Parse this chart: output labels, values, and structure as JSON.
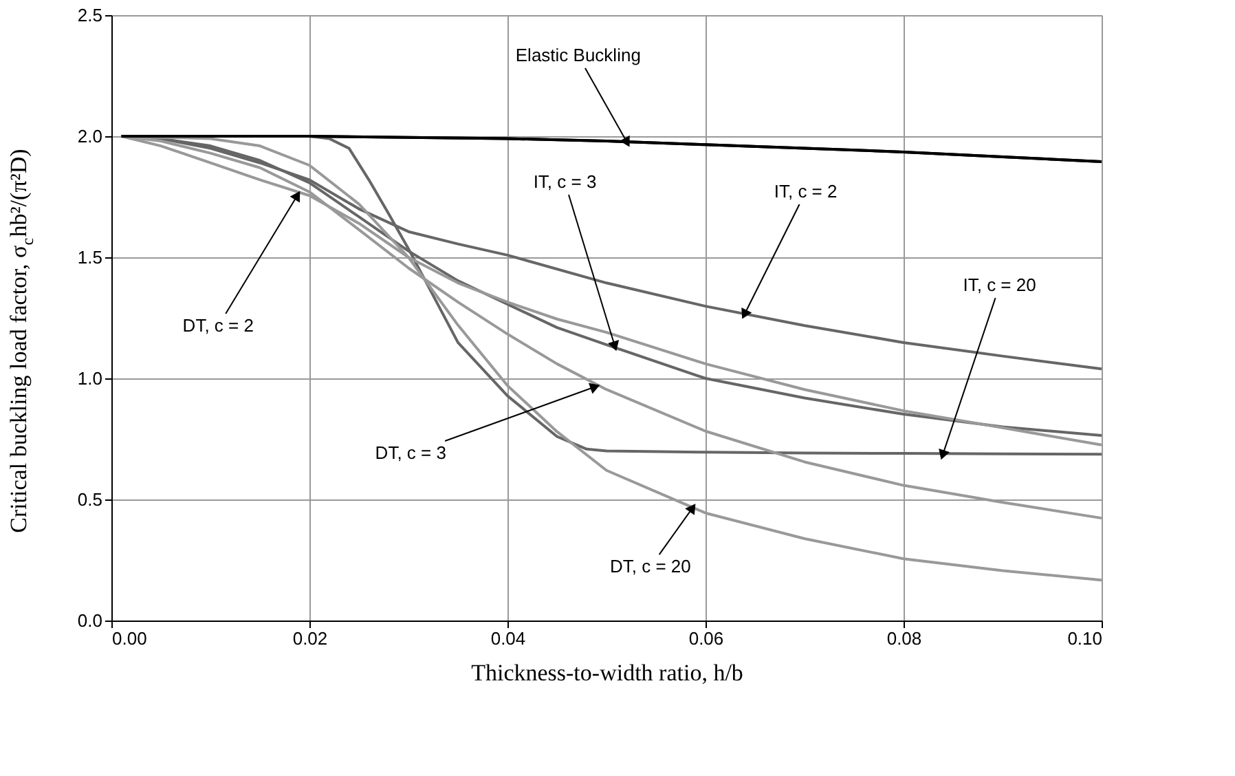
{
  "chart_data": {
    "type": "line",
    "xlabel": "Thickness-to-width ratio, h/b",
    "ylabel": "Critical buckling load factor, σ$_{c}$hb²/(π²D)",
    "xlim": [
      0,
      0.1
    ],
    "ylim": [
      0,
      2.5
    ],
    "xticks": [
      {
        "value": 0,
        "label": "0.00"
      },
      {
        "value": 0.02,
        "label": "0.02"
      },
      {
        "value": 0.04,
        "label": "0.04"
      },
      {
        "value": 0.06,
        "label": "0.06"
      },
      {
        "value": 0.08,
        "label": "0.08"
      },
      {
        "value": 0.1,
        "label": "0.10"
      }
    ],
    "yticks": [
      {
        "value": 0,
        "label": "0.0"
      },
      {
        "value": 0.5,
        "label": "0.5"
      },
      {
        "value": 1,
        "label": "1.0"
      },
      {
        "value": 1.5,
        "label": "1.5"
      },
      {
        "value": 2,
        "label": "2.0"
      },
      {
        "value": 2.5,
        "label": "2.5"
      }
    ],
    "grid": true,
    "marker": "none",
    "line_style": "solid",
    "series": [
      {
        "color": "#000000",
        "x": [
          0.001,
          0.01,
          0.02,
          0.03,
          0.04,
          0.05,
          0.06,
          0.07,
          0.08,
          0.09,
          0.1
        ],
        "values": [
          2.0,
          2.0,
          2.0,
          1.995,
          1.99,
          1.98,
          1.965,
          1.95,
          1.935,
          1.915,
          1.895
        ]
      },
      {
        "color": "#666666",
        "x": [
          0.001,
          0.005,
          0.01,
          0.015,
          0.02,
          0.025,
          0.03,
          0.035,
          0.04,
          0.05,
          0.06,
          0.07,
          0.08,
          0.09,
          0.1
        ],
        "values": [
          2.0,
          1.99,
          1.95,
          1.89,
          1.82,
          1.7,
          1.606,
          1.555,
          1.509,
          1.394,
          1.298,
          1.218,
          1.148,
          1.092,
          1.039
        ]
      },
      {
        "color": "#666666",
        "x": [
          0.001,
          0.005,
          0.01,
          0.015,
          0.02,
          0.025,
          0.03,
          0.035,
          0.04,
          0.045,
          0.05,
          0.06,
          0.07,
          0.08,
          0.09,
          0.1
        ],
        "values": [
          2.0,
          1.99,
          1.96,
          1.9,
          1.808,
          1.667,
          1.526,
          1.403,
          1.306,
          1.21,
          1.139,
          1.0,
          0.919,
          0.852,
          0.8,
          0.764
        ]
      },
      {
        "color": "#666666",
        "x": [
          0.001,
          0.01,
          0.02,
          0.022,
          0.024,
          0.026,
          0.028,
          0.03,
          0.035,
          0.04,
          0.045,
          0.048,
          0.05,
          0.06,
          0.07,
          0.08,
          0.09,
          0.1
        ],
        "values": [
          2.0,
          2.0,
          2.0,
          1.99,
          1.95,
          1.82,
          1.68,
          1.535,
          1.148,
          0.928,
          0.76,
          0.708,
          0.7,
          0.695,
          0.692,
          0.69,
          0.688,
          0.687
        ]
      },
      {
        "color": "#999999",
        "x": [
          0.001,
          0.005,
          0.01,
          0.015,
          0.02,
          0.025,
          0.03,
          0.035,
          0.04,
          0.045,
          0.05,
          0.06,
          0.07,
          0.08,
          0.09,
          0.1
        ],
        "values": [
          2.0,
          1.96,
          1.89,
          1.82,
          1.755,
          1.64,
          1.5,
          1.394,
          1.315,
          1.245,
          1.19,
          1.06,
          0.954,
          0.866,
          0.796,
          0.725
        ]
      },
      {
        "color": "#999999",
        "x": [
          0.001,
          0.005,
          0.01,
          0.015,
          0.02,
          0.025,
          0.03,
          0.035,
          0.04,
          0.045,
          0.05,
          0.06,
          0.07,
          0.08,
          0.09,
          0.1
        ],
        "values": [
          2.0,
          1.98,
          1.93,
          1.87,
          1.77,
          1.614,
          1.456,
          1.315,
          1.183,
          1.06,
          0.954,
          0.782,
          0.655,
          0.558,
          0.488,
          0.423
        ]
      },
      {
        "color": "#999999",
        "x": [
          0.001,
          0.01,
          0.015,
          0.02,
          0.025,
          0.03,
          0.035,
          0.04,
          0.045,
          0.05,
          0.06,
          0.07,
          0.08,
          0.09,
          0.1
        ],
        "values": [
          2.0,
          1.99,
          1.96,
          1.88,
          1.72,
          1.5,
          1.22,
          0.97,
          0.78,
          0.62,
          0.444,
          0.338,
          0.255,
          0.206,
          0.167
        ]
      }
    ],
    "annotations": [
      {
        "text": "Elastic Buckling",
        "x": 0.052,
        "y": 1.98
      },
      {
        "text": "IT, c = 3",
        "x": 0.0508,
        "y": 1.139
      },
      {
        "text": "IT, c = 2",
        "x": 0.064,
        "y": 1.27
      },
      {
        "text": "IT, c = 20",
        "x": 0.084,
        "y": 0.69
      },
      {
        "text": "DT, c = 2",
        "x": 0.0187,
        "y": 1.75
      },
      {
        "text": "DT, c = 3",
        "x": 0.0487,
        "y": 0.963
      },
      {
        "text": "DT, c = 20",
        "x": 0.0586,
        "y": 0.46
      }
    ]
  }
}
